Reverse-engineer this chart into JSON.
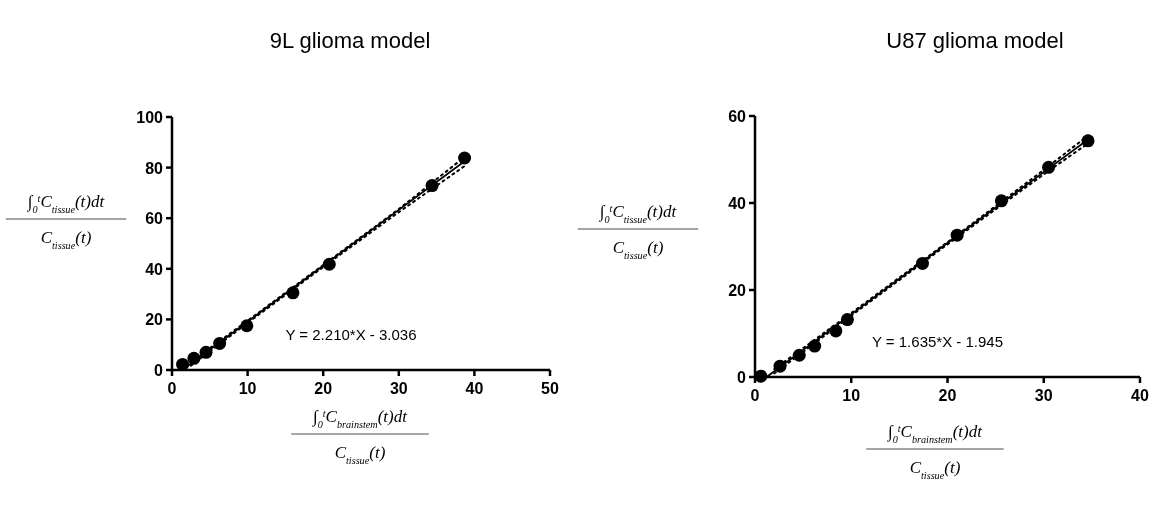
{
  "chart_data": [
    {
      "type": "scatter",
      "title": "9L glioma model",
      "xlabel": "∫$_{0}$$^{t}$C$_{brainstem}$(t)dt\nC$_{tissue}$(t)",
      "ylabel": "∫$_{0}$$^{t}$C$_{tissue}$(t)dt\nC$_{tissue}$(t)",
      "xlim": [
        0,
        50
      ],
      "ylim": [
        0,
        100
      ],
      "xticks": [
        0,
        10,
        20,
        30,
        40,
        50
      ],
      "yticks": [
        0,
        20,
        40,
        60,
        80,
        100
      ],
      "grid": false,
      "annotations": [
        "Y = 2.210*X - 3.036"
      ],
      "series": [
        {
          "color": "#000000",
          "marker": "circle",
          "x": [
            1.4,
            2.9,
            4.5,
            6.3,
            9.9,
            16.0,
            20.8,
            34.4,
            38.7
          ],
          "values": [
            2.2,
            4.6,
            7.0,
            10.5,
            17.5,
            30.5,
            41.8,
            72.9,
            83.8
          ]
        },
        {
          "type": "line",
          "color": "#000000",
          "line_style": "solid",
          "x": [
            1.4,
            10,
            20,
            30,
            38.7
          ],
          "values": [
            0.1,
            19.1,
            41.2,
            63.3,
            82.5
          ]
        },
        {
          "type": "line",
          "color": "#000000",
          "line_style": "dotted",
          "x": [
            2.5,
            10,
            20,
            30,
            38.7
          ],
          "values": [
            1.7,
            18.6,
            40.7,
            62.4,
            80.6
          ]
        },
        {
          "type": "line",
          "color": "#000000",
          "line_style": "dotted",
          "x": [
            2.5,
            10,
            20,
            30,
            38.7
          ],
          "values": [
            3.2,
            19.5,
            41.5,
            63.6,
            84.2
          ]
        }
      ]
    },
    {
      "type": "scatter",
      "title": "U87 glioma model",
      "xlabel": "∫$_{0}$$^{t}$C$_{brainstem}$(t)dt\nC$_{tissue}$(t)",
      "ylabel": "∫$_{0}$$^{t}$C$_{tissue}$(t)dt\nC$_{tissue}$(t)",
      "xlim": [
        0,
        40
      ],
      "ylim": [
        0,
        60
      ],
      "xticks": [
        0,
        10,
        20,
        30,
        40
      ],
      "yticks": [
        0,
        20,
        40,
        60
      ],
      "grid": false,
      "annotations": [
        "Y = 1.635*X - 1.945"
      ],
      "series": [
        {
          "color": "#000000",
          "marker": "circle",
          "x": [
            0.6,
            2.6,
            4.6,
            6.2,
            8.4,
            9.6,
            17.4,
            21.0,
            25.6,
            30.5,
            34.6
          ],
          "values": [
            0.2,
            2.5,
            5.0,
            7.1,
            10.6,
            13.2,
            26.1,
            32.6,
            40.5,
            48.2,
            54.3
          ]
        },
        {
          "type": "line",
          "color": "#000000",
          "line_style": "solid",
          "x": [
            1.2,
            10,
            20,
            30,
            34.6
          ],
          "values": [
            0.0,
            14.4,
            30.8,
            47.1,
            54.6
          ]
        },
        {
          "type": "line",
          "color": "#000000",
          "line_style": "dotted",
          "x": [
            2,
            10,
            20,
            30,
            34.6
          ],
          "values": [
            0.8,
            14.1,
            30.5,
            46.6,
            53.7
          ]
        },
        {
          "type": "line",
          "color": "#000000",
          "line_style": "dotted",
          "x": [
            2,
            10,
            20,
            30,
            34.6
          ],
          "values": [
            1.8,
            14.7,
            31.0,
            47.6,
            55.5
          ]
        }
      ]
    }
  ]
}
